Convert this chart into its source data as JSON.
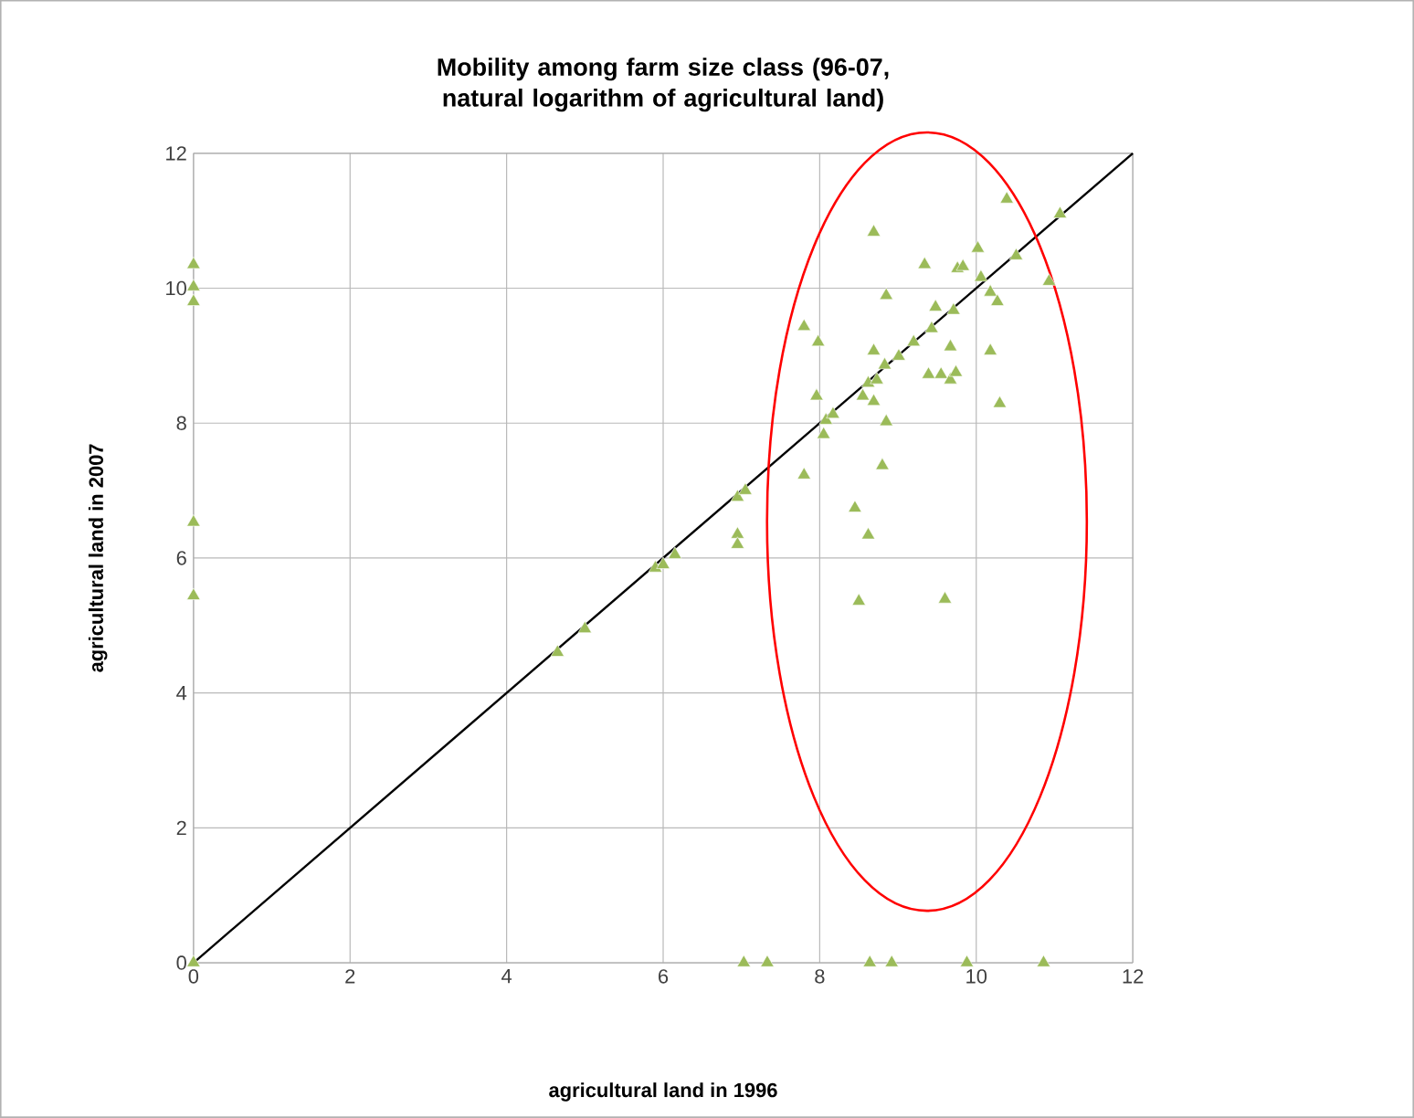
{
  "chart_data": {
    "type": "scatter",
    "title": "Mobility among farm size class (96-07, natural logarithm of agricultural land)",
    "xlabel": "agricultural land in 1996",
    "ylabel": "agricultural land in 2007",
    "xlim": [
      0,
      12
    ],
    "ylim": [
      0,
      12
    ],
    "xticks": [
      0,
      2,
      4,
      6,
      8,
      10,
      12
    ],
    "yticks": [
      0,
      2,
      4,
      6,
      8,
      10,
      12
    ],
    "grid": true,
    "marker": "triangle",
    "series": [
      {
        "color": "#9bbb59",
        "x": [
          0,
          0,
          0,
          0,
          0,
          0,
          4.65,
          5.0,
          5.9,
          6.0,
          6.15,
          6.95,
          7.05,
          6.95,
          6.95,
          7.8,
          7.8,
          7.98,
          7.96,
          8.08,
          8.05,
          8.17,
          8.45,
          8.5,
          8.62,
          8.55,
          8.62,
          8.69,
          8.73,
          8.69,
          8.69,
          8.83,
          8.85,
          8.8,
          8.85,
          9.01,
          9.2,
          9.34,
          9.39,
          9.43,
          9.48,
          9.55,
          9.6,
          9.67,
          9.67,
          9.71,
          9.76,
          9.83,
          9.74,
          10.02,
          10.06,
          10.18,
          10.18,
          10.27,
          10.3,
          10.39,
          10.51,
          10.93,
          11.07,
          7.03,
          7.33,
          8.64,
          8.92,
          9.88,
          10.86
        ],
        "values": [
          10.35,
          10.02,
          9.8,
          6.53,
          5.44,
          0,
          4.6,
          4.95,
          5.85,
          5.9,
          6.05,
          6.9,
          7.0,
          6.35,
          6.2,
          7.23,
          9.43,
          9.2,
          8.4,
          8.04,
          7.83,
          8.13,
          6.74,
          5.36,
          6.34,
          8.4,
          8.59,
          8.32,
          8.64,
          9.07,
          10.83,
          8.86,
          8.02,
          7.37,
          9.89,
          8.99,
          9.2,
          10.35,
          8.72,
          9.4,
          9.72,
          8.72,
          5.39,
          9.13,
          8.64,
          9.67,
          10.29,
          10.32,
          8.75,
          10.59,
          10.16,
          9.94,
          9.07,
          9.8,
          8.29,
          11.32,
          10.48,
          10.1,
          11.1,
          0,
          0,
          0,
          0,
          0,
          0
        ]
      },
      {
        "type": "line",
        "color": "#000000",
        "line_style": "solid",
        "marker": "none",
        "x": [
          0,
          12
        ],
        "values": [
          0,
          12
        ]
      }
    ]
  }
}
